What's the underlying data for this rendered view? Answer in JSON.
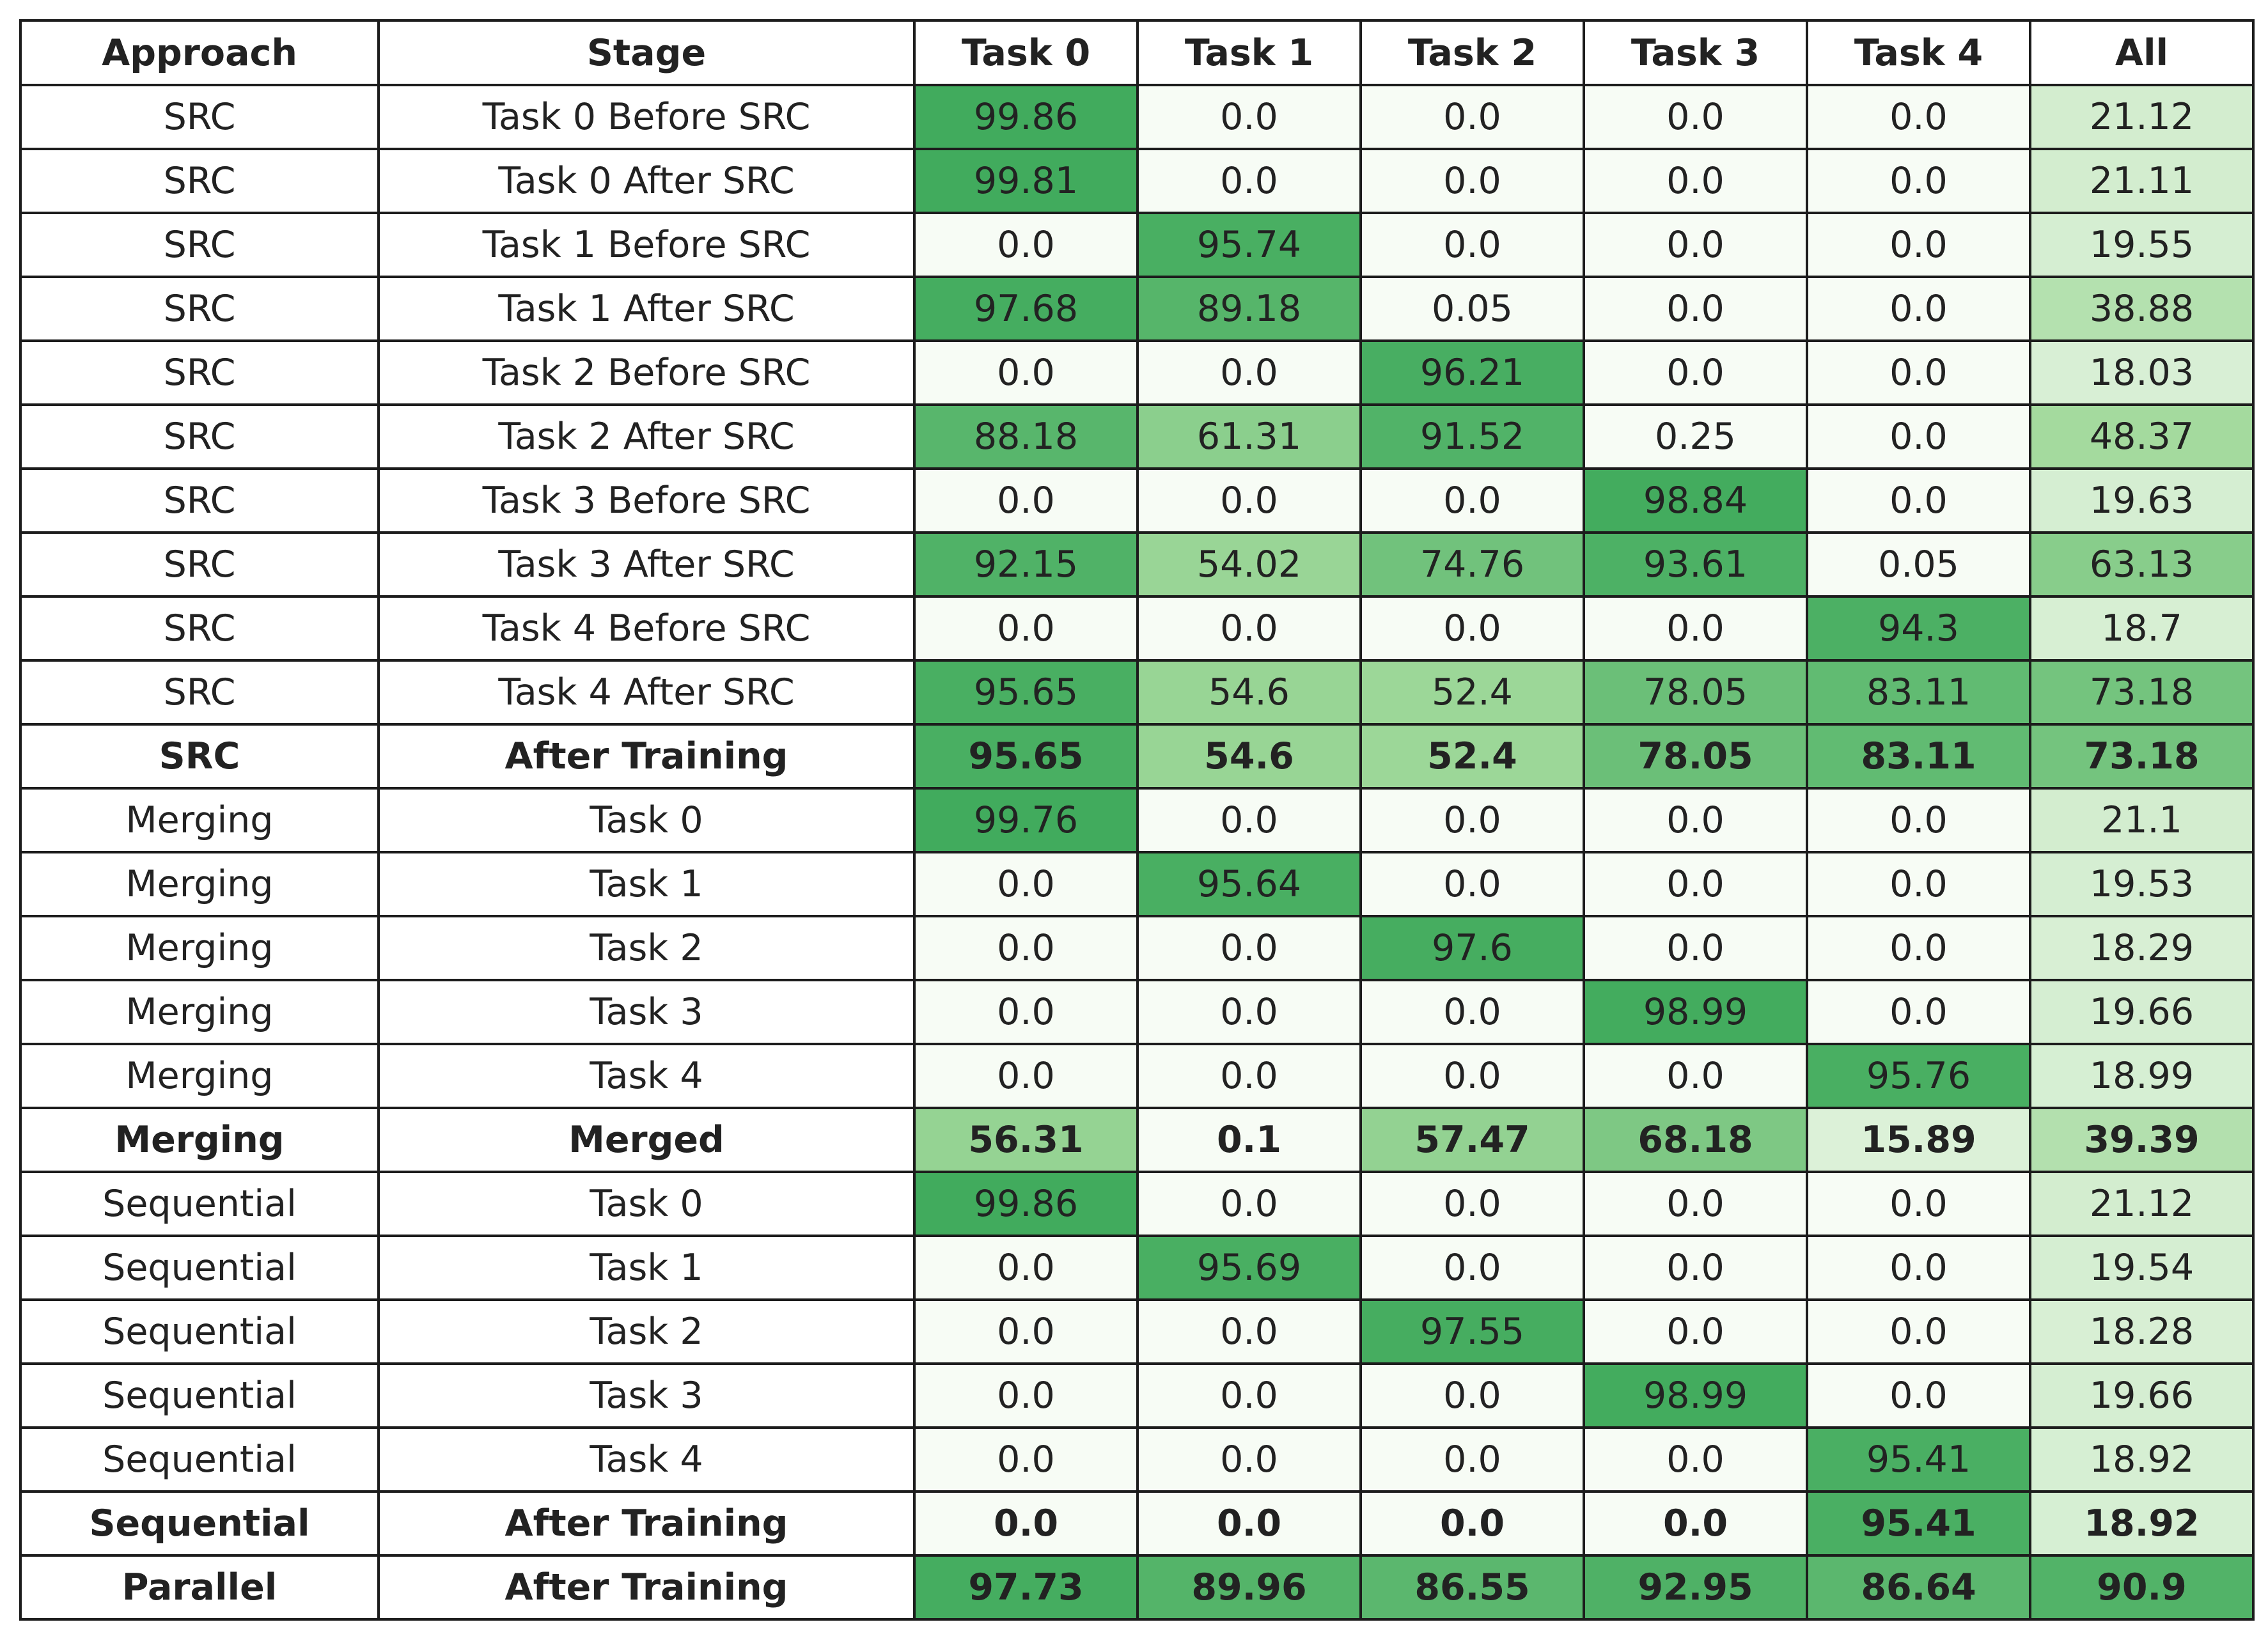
{
  "chart_data": {
    "type": "table",
    "columns": [
      "Approach",
      "Stage",
      "Task 0",
      "Task 1",
      "Task 2",
      "Task 3",
      "Task 4",
      "All"
    ],
    "colormap": {
      "low": "#f7fcf5",
      "mid": "#a1d99b",
      "high": "#41ab5d"
    },
    "value_range": [
      0,
      100
    ],
    "rows": [
      {
        "approach": "SRC",
        "stage": "Task 0 Before SRC",
        "bold": false,
        "values": [
          "99.86",
          "0.0",
          "0.0",
          "0.0",
          "0.0",
          "21.12"
        ]
      },
      {
        "approach": "SRC",
        "stage": "Task 0 After SRC",
        "bold": false,
        "values": [
          "99.81",
          "0.0",
          "0.0",
          "0.0",
          "0.0",
          "21.11"
        ]
      },
      {
        "approach": "SRC",
        "stage": "Task 1 Before SRC",
        "bold": false,
        "values": [
          "0.0",
          "95.74",
          "0.0",
          "0.0",
          "0.0",
          "19.55"
        ]
      },
      {
        "approach": "SRC",
        "stage": "Task 1 After SRC",
        "bold": false,
        "values": [
          "97.68",
          "89.18",
          "0.05",
          "0.0",
          "0.0",
          "38.88"
        ]
      },
      {
        "approach": "SRC",
        "stage": "Task 2 Before SRC",
        "bold": false,
        "values": [
          "0.0",
          "0.0",
          "96.21",
          "0.0",
          "0.0",
          "18.03"
        ]
      },
      {
        "approach": "SRC",
        "stage": "Task 2 After SRC",
        "bold": false,
        "values": [
          "88.18",
          "61.31",
          "91.52",
          "0.25",
          "0.0",
          "48.37"
        ]
      },
      {
        "approach": "SRC",
        "stage": "Task 3 Before SRC",
        "bold": false,
        "values": [
          "0.0",
          "0.0",
          "0.0",
          "98.84",
          "0.0",
          "19.63"
        ]
      },
      {
        "approach": "SRC",
        "stage": "Task 3 After SRC",
        "bold": false,
        "values": [
          "92.15",
          "54.02",
          "74.76",
          "93.61",
          "0.05",
          "63.13"
        ]
      },
      {
        "approach": "SRC",
        "stage": "Task 4 Before SRC",
        "bold": false,
        "values": [
          "0.0",
          "0.0",
          "0.0",
          "0.0",
          "94.3",
          "18.7"
        ]
      },
      {
        "approach": "SRC",
        "stage": "Task 4 After SRC",
        "bold": false,
        "values": [
          "95.65",
          "54.6",
          "52.4",
          "78.05",
          "83.11",
          "73.18"
        ]
      },
      {
        "approach": "SRC",
        "stage": "After Training",
        "bold": true,
        "values": [
          "95.65",
          "54.6",
          "52.4",
          "78.05",
          "83.11",
          "73.18"
        ]
      },
      {
        "approach": "Merging",
        "stage": "Task 0",
        "bold": false,
        "values": [
          "99.76",
          "0.0",
          "0.0",
          "0.0",
          "0.0",
          "21.1"
        ]
      },
      {
        "approach": "Merging",
        "stage": "Task 1",
        "bold": false,
        "values": [
          "0.0",
          "95.64",
          "0.0",
          "0.0",
          "0.0",
          "19.53"
        ]
      },
      {
        "approach": "Merging",
        "stage": "Task 2",
        "bold": false,
        "values": [
          "0.0",
          "0.0",
          "97.6",
          "0.0",
          "0.0",
          "18.29"
        ]
      },
      {
        "approach": "Merging",
        "stage": "Task 3",
        "bold": false,
        "values": [
          "0.0",
          "0.0",
          "0.0",
          "98.99",
          "0.0",
          "19.66"
        ]
      },
      {
        "approach": "Merging",
        "stage": "Task 4",
        "bold": false,
        "values": [
          "0.0",
          "0.0",
          "0.0",
          "0.0",
          "95.76",
          "18.99"
        ]
      },
      {
        "approach": "Merging",
        "stage": "Merged",
        "bold": true,
        "values": [
          "56.31",
          "0.1",
          "57.47",
          "68.18",
          "15.89",
          "39.39"
        ]
      },
      {
        "approach": "Sequential",
        "stage": "Task 0",
        "bold": false,
        "values": [
          "99.86",
          "0.0",
          "0.0",
          "0.0",
          "0.0",
          "21.12"
        ]
      },
      {
        "approach": "Sequential",
        "stage": "Task 1",
        "bold": false,
        "values": [
          "0.0",
          "95.69",
          "0.0",
          "0.0",
          "0.0",
          "19.54"
        ]
      },
      {
        "approach": "Sequential",
        "stage": "Task 2",
        "bold": false,
        "values": [
          "0.0",
          "0.0",
          "97.55",
          "0.0",
          "0.0",
          "18.28"
        ]
      },
      {
        "approach": "Sequential",
        "stage": "Task 3",
        "bold": false,
        "values": [
          "0.0",
          "0.0",
          "0.0",
          "98.99",
          "0.0",
          "19.66"
        ]
      },
      {
        "approach": "Sequential",
        "stage": "Task 4",
        "bold": false,
        "values": [
          "0.0",
          "0.0",
          "0.0",
          "0.0",
          "95.41",
          "18.92"
        ]
      },
      {
        "approach": "Sequential",
        "stage": "After Training",
        "bold": true,
        "values": [
          "0.0",
          "0.0",
          "0.0",
          "0.0",
          "95.41",
          "18.92"
        ]
      },
      {
        "approach": "Parallel",
        "stage": "After Training",
        "bold": true,
        "values": [
          "97.73",
          "89.96",
          "86.55",
          "92.95",
          "86.64",
          "90.9"
        ]
      }
    ]
  }
}
